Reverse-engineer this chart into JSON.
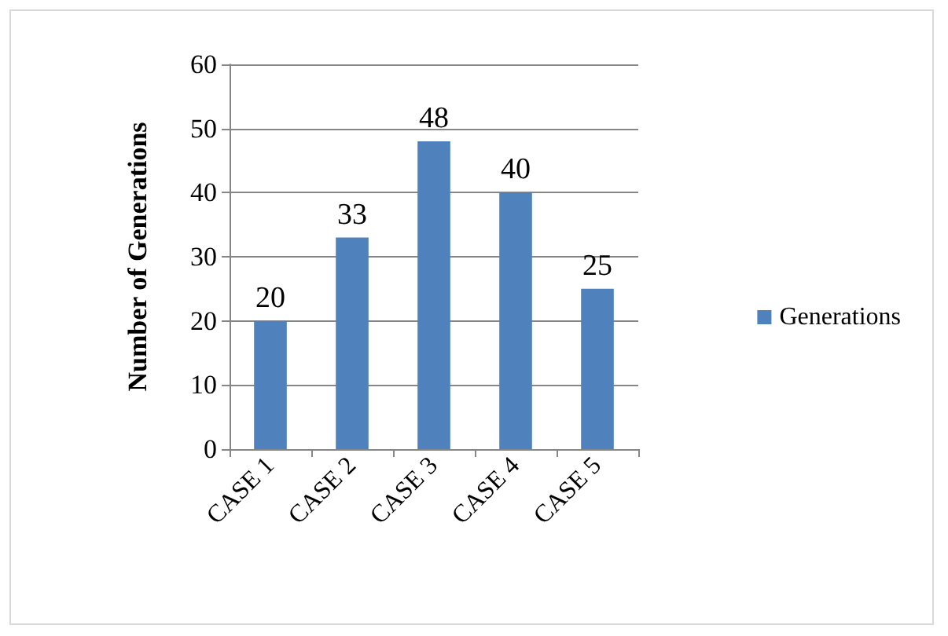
{
  "chart_data": {
    "type": "bar",
    "ylabel": "Number of Generations",
    "categories": [
      "CASE 1",
      "CASE 2",
      "CASE 3",
      "CASE 4",
      "CASE 5"
    ],
    "series": [
      {
        "name": "Generations",
        "color": "#4f81bd",
        "values": [
          20,
          33,
          48,
          40,
          25
        ]
      }
    ],
    "ylim": [
      0,
      60
    ],
    "yticks": [
      0,
      10,
      20,
      30,
      40,
      50,
      60
    ],
    "grid": "y",
    "legend": "right",
    "data_labels": true
  }
}
